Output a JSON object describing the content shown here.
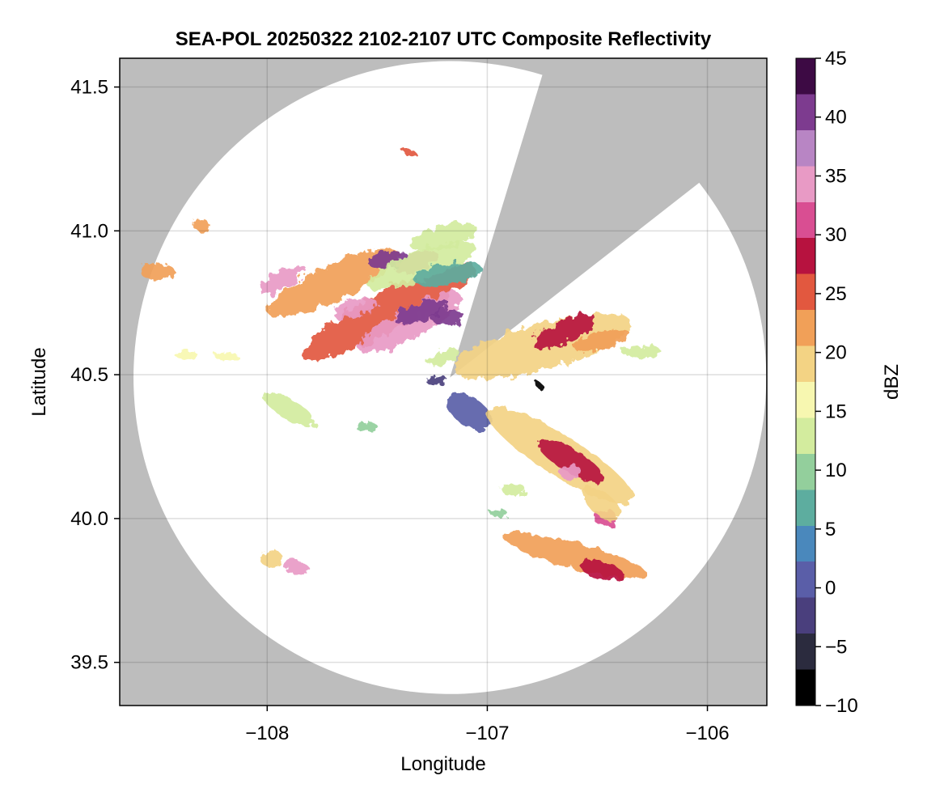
{
  "chart_data": {
    "type": "heatmap",
    "title": "SEA-POL 20250322 2102-2107 UTC Composite Reflectivity",
    "xlabel": "Longitude",
    "ylabel": "Latitude",
    "xlim": [
      -108.67,
      -105.73
    ],
    "ylim": [
      39.35,
      41.6
    ],
    "xticks": [
      -108,
      -107,
      -106
    ],
    "xtick_labels": [
      "−108",
      "−107",
      "−106"
    ],
    "yticks": [
      39.5,
      40.0,
      40.5,
      41.0,
      41.5
    ],
    "ytick_labels": [
      "39.5",
      "40.0",
      "40.5",
      "41.0",
      "41.5"
    ],
    "grid": true,
    "background_color": "#bdbdbd",
    "radar_center": [
      -107.17,
      40.49
    ],
    "radar_range_deg_lat": 1.1,
    "blocked_sectors_deg_from_north": [
      [
        17,
        52
      ]
    ],
    "colorbar": {
      "label": "dBZ",
      "range": [
        -10,
        45
      ],
      "ticks": [
        -10,
        -5,
        0,
        5,
        10,
        15,
        20,
        25,
        30,
        35,
        40,
        45
      ],
      "tick_labels": [
        "−10",
        "−5",
        "0",
        "5",
        "10",
        "15",
        "20",
        "25",
        "30",
        "35",
        "40",
        "45"
      ],
      "colors": [
        "#000000",
        "#2b2b3e",
        "#4a3f7d",
        "#5a5ea8",
        "#4a88bc",
        "#5dad9f",
        "#93cf9c",
        "#d3ec9e",
        "#f7f7b0",
        "#f3d384",
        "#f1a058",
        "#e2583f",
        "#b7123f",
        "#d94e92",
        "#e89ac5",
        "#b885c4",
        "#7d3b8f",
        "#3d0a44"
      ]
    },
    "echoes": [
      {
        "lon": -107.45,
        "lat": 40.72,
        "a": 0.34,
        "b": 0.07,
        "rot": -28,
        "dbz": 24
      },
      {
        "lon": -107.35,
        "lat": 40.68,
        "a": 0.2,
        "b": 0.05,
        "rot": -28,
        "dbz": 33
      },
      {
        "lon": -107.3,
        "lat": 40.72,
        "a": 0.1,
        "b": 0.03,
        "rot": -20,
        "dbz": 41
      },
      {
        "lon": -107.18,
        "lat": 40.7,
        "a": 0.06,
        "b": 0.03,
        "rot": 0,
        "dbz": 40
      },
      {
        "lon": -107.7,
        "lat": 40.82,
        "a": 0.25,
        "b": 0.06,
        "rot": -25,
        "dbz": 22
      },
      {
        "lon": -107.93,
        "lat": 40.83,
        "a": 0.09,
        "b": 0.03,
        "rot": -30,
        "dbz": 33
      },
      {
        "lon": -107.6,
        "lat": 40.73,
        "a": 0.08,
        "b": 0.03,
        "rot": -15,
        "dbz": 35
      },
      {
        "lon": -107.45,
        "lat": 40.9,
        "a": 0.07,
        "b": 0.03,
        "rot": -10,
        "dbz": 40
      },
      {
        "lon": -107.32,
        "lat": 40.89,
        "a": 0.08,
        "b": 0.03,
        "rot": -20,
        "dbz": 32
      },
      {
        "lon": -107.3,
        "lat": 40.88,
        "a": 0.2,
        "b": 0.05,
        "rot": -20,
        "dbz": 14
      },
      {
        "lon": -107.18,
        "lat": 40.85,
        "a": 0.12,
        "b": 0.035,
        "rot": -10,
        "dbz": 6
      },
      {
        "lon": -107.2,
        "lat": 40.98,
        "a": 0.12,
        "b": 0.04,
        "rot": -15,
        "dbz": 13
      },
      {
        "lon": -108.5,
        "lat": 40.86,
        "a": 0.06,
        "b": 0.03,
        "rot": 0,
        "dbz": 21
      },
      {
        "lon": -108.3,
        "lat": 41.02,
        "a": 0.03,
        "b": 0.02,
        "rot": 0,
        "dbz": 22
      },
      {
        "lon": -108.37,
        "lat": 40.57,
        "a": 0.04,
        "b": 0.015,
        "rot": 0,
        "dbz": 15
      },
      {
        "lon": -108.18,
        "lat": 40.56,
        "a": 0.04,
        "b": 0.015,
        "rot": 0,
        "dbz": 17
      },
      {
        "lon": -107.35,
        "lat": 41.27,
        "a": 0.02,
        "b": 0.01,
        "rot": 0,
        "dbz": 24
      },
      {
        "lon": -107.2,
        "lat": 40.56,
        "a": 0.06,
        "b": 0.025,
        "rot": -20,
        "dbz": 14
      },
      {
        "lon": -106.75,
        "lat": 40.6,
        "a": 0.32,
        "b": 0.08,
        "rot": -15,
        "dbz": 18
      },
      {
        "lon": -106.65,
        "lat": 40.65,
        "a": 0.12,
        "b": 0.04,
        "rot": -25,
        "dbz": 28
      },
      {
        "lon": -106.48,
        "lat": 40.62,
        "a": 0.1,
        "b": 0.03,
        "rot": -15,
        "dbz": 21
      },
      {
        "lon": -106.3,
        "lat": 40.58,
        "a": 0.07,
        "b": 0.02,
        "rot": 0,
        "dbz": 14
      },
      {
        "lon": -107.23,
        "lat": 40.48,
        "a": 0.04,
        "b": 0.015,
        "rot": 0,
        "dbz": -2
      },
      {
        "lon": -107.08,
        "lat": 40.37,
        "a": 0.09,
        "b": 0.05,
        "rot": 35,
        "dbz": 2
      },
      {
        "lon": -106.67,
        "lat": 40.22,
        "a": 0.3,
        "b": 0.07,
        "rot": 32,
        "dbz": 18
      },
      {
        "lon": -106.62,
        "lat": 40.2,
        "a": 0.13,
        "b": 0.04,
        "rot": 30,
        "dbz": 28
      },
      {
        "lon": -106.62,
        "lat": 40.16,
        "a": 0.04,
        "b": 0.025,
        "rot": 0,
        "dbz": 33
      },
      {
        "lon": -106.46,
        "lat": 40.0,
        "a": 0.04,
        "b": 0.03,
        "rot": 0,
        "dbz": 31
      },
      {
        "lon": -106.48,
        "lat": 40.05,
        "a": 0.08,
        "b": 0.04,
        "rot": 40,
        "dbz": 20
      },
      {
        "lon": -106.88,
        "lat": 40.1,
        "a": 0.04,
        "b": 0.025,
        "rot": 0,
        "dbz": 12
      },
      {
        "lon": -106.6,
        "lat": 39.87,
        "a": 0.26,
        "b": 0.045,
        "rot": 15,
        "dbz": 22
      },
      {
        "lon": -106.48,
        "lat": 39.82,
        "a": 0.08,
        "b": 0.03,
        "rot": 15,
        "dbz": 28
      },
      {
        "lon": -107.87,
        "lat": 39.83,
        "a": 0.04,
        "b": 0.025,
        "rot": 0,
        "dbz": 33
      },
      {
        "lon": -107.98,
        "lat": 39.86,
        "a": 0.04,
        "b": 0.03,
        "rot": 0,
        "dbz": 20
      },
      {
        "lon": -107.9,
        "lat": 40.38,
        "a": 0.1,
        "b": 0.035,
        "rot": 30,
        "dbz": 14
      },
      {
        "lon": -107.55,
        "lat": 40.32,
        "a": 0.04,
        "b": 0.015,
        "rot": 0,
        "dbz": 11
      },
      {
        "lon": -106.95,
        "lat": 40.02,
        "a": 0.03,
        "b": 0.015,
        "rot": 0,
        "dbz": 10
      },
      {
        "lon": -106.76,
        "lat": 40.46,
        "a": 0.01,
        "b": 0.01,
        "rot": 0,
        "dbz": -10
      }
    ]
  }
}
